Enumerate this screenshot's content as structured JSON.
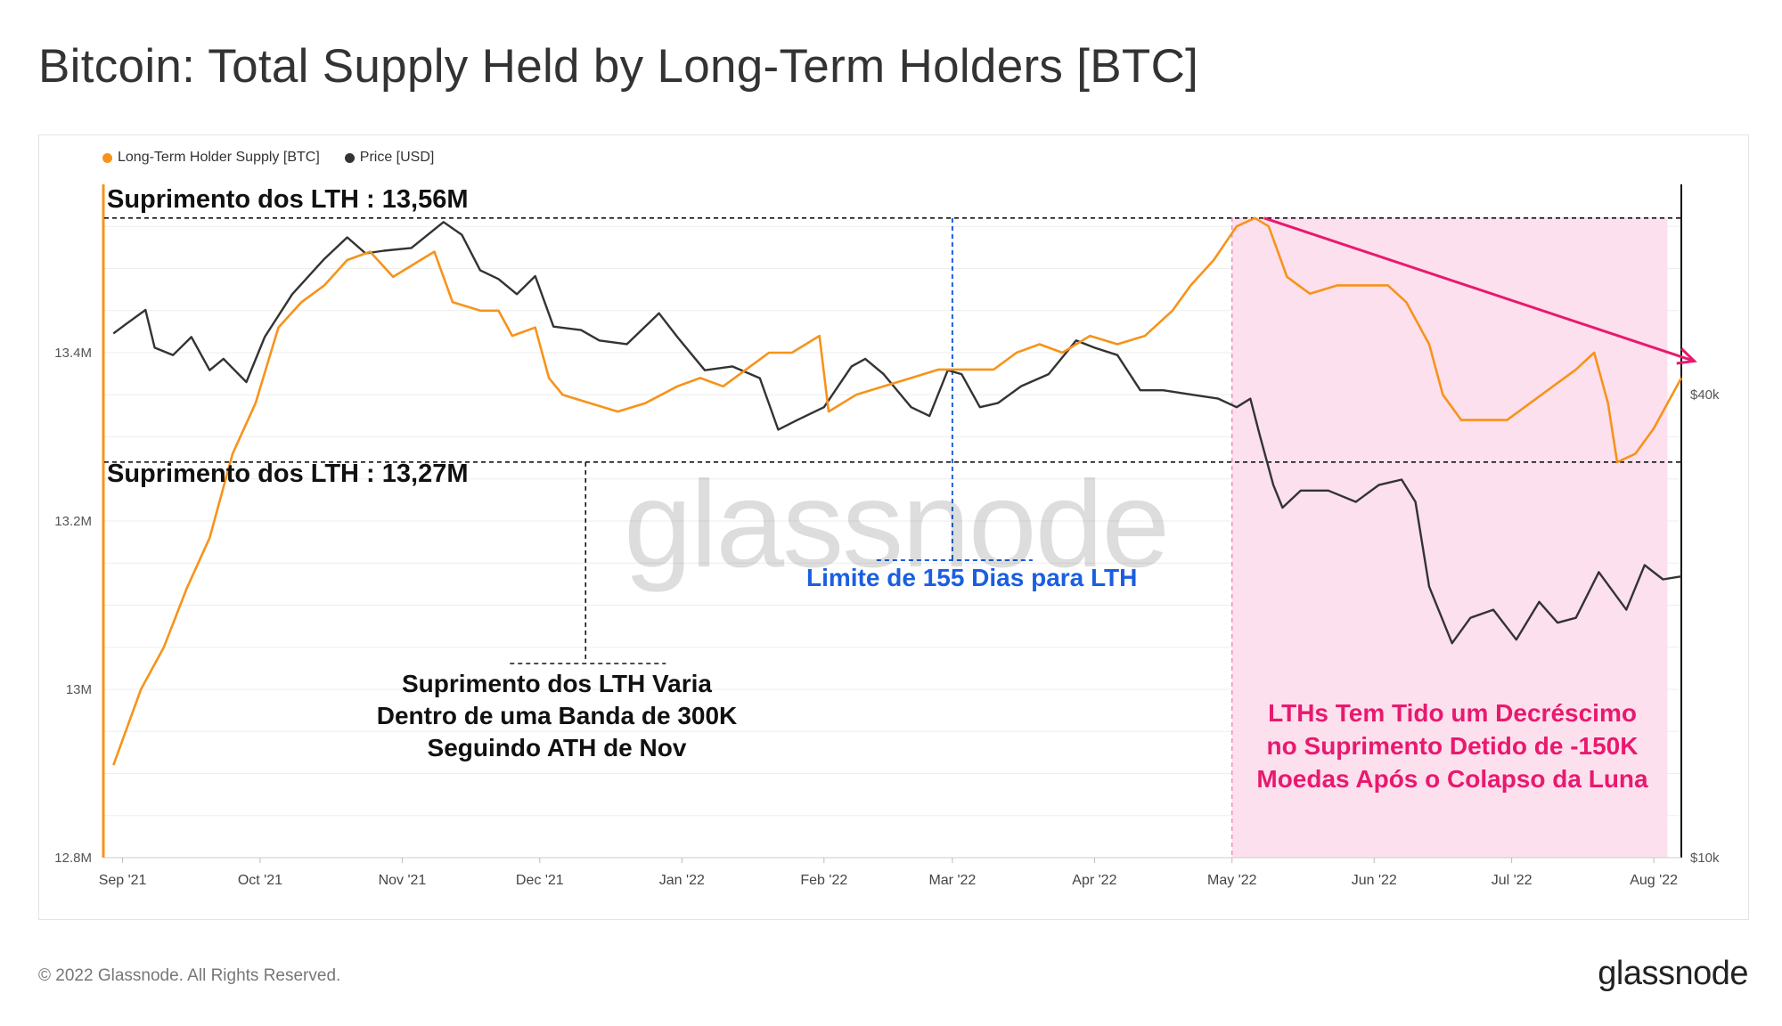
{
  "title": "Bitcoin: Total Supply Held by Long-Term Holders [BTC]",
  "legend": [
    {
      "label": "Long-Term Holder Supply [BTC]",
      "color": "#f7931a"
    },
    {
      "label": "Price [USD]",
      "color": "#333333"
    }
  ],
  "footer": {
    "copyright": "© 2022 Glassnode. All Rights Reserved.",
    "logo": "glassnode"
  },
  "watermark": "glassnode",
  "annotations": {
    "lth_high": "Suprimento dos LTH : 13,56M",
    "lth_low": "Suprimento dos LTH : 13,27M",
    "limit": "Limite de 155 Dias para LTH",
    "band": [
      "Suprimento dos LTH Varia",
      "Dentro de uma Banda de 300K",
      "Seguindo ATH de Nov"
    ],
    "decline": [
      "LTHs Tem Tido um Decréscimo",
      "no Suprimento Detido de -150K",
      "Moedas Após o Colapso da Luna"
    ]
  },
  "colors": {
    "lth": "#f7931a",
    "price": "#333333",
    "highlight": "#fde0ee",
    "arrow": "#e8196e",
    "limit": "#1a5fe0"
  },
  "chart_data": {
    "type": "line",
    "x_range": [
      "2021-08-28",
      "2022-08-07"
    ],
    "x_ticks": [
      "Sep '21",
      "Oct '21",
      "Nov '21",
      "Dec '21",
      "Jan '22",
      "Feb '22",
      "Mar '22",
      "Apr '22",
      "May '22",
      "Jun '22",
      "Jul '22",
      "Aug '22"
    ],
    "y_left": {
      "label": "Long-Term Holder Supply [BTC]",
      "ticks": [
        "12.8M",
        "13M",
        "13.2M",
        "13.4M"
      ],
      "range": [
        12.8,
        13.6
      ]
    },
    "y_right": {
      "label": "Price [USD]",
      "scale": "log",
      "ticks": [
        "$10k",
        "$40k"
      ],
      "range": [
        10000,
        75000
      ]
    },
    "reference_levels": {
      "lth_high": 13.56,
      "lth_low": 13.27,
      "limit_date": "2022-03-01"
    },
    "highlight_range": [
      "2022-05-01",
      "2022-08-04"
    ],
    "trend_arrow": {
      "from": [
        "2022-05-08",
        13.56
      ],
      "to": [
        "2022-08-04",
        13.39
      ]
    },
    "series": [
      {
        "name": "Long-Term Holder Supply [BTC]",
        "axis": "left",
        "unit": "M BTC",
        "points": [
          [
            "2021-08-30",
            12.91
          ],
          [
            "2021-09-05",
            13.0
          ],
          [
            "2021-09-10",
            13.05
          ],
          [
            "2021-09-15",
            13.12
          ],
          [
            "2021-09-20",
            13.18
          ],
          [
            "2021-09-25",
            13.28
          ],
          [
            "2021-09-30",
            13.34
          ],
          [
            "2021-10-05",
            13.43
          ],
          [
            "2021-10-10",
            13.46
          ],
          [
            "2021-10-15",
            13.48
          ],
          [
            "2021-10-20",
            13.51
          ],
          [
            "2021-10-25",
            13.52
          ],
          [
            "2021-10-30",
            13.49
          ],
          [
            "2021-11-05",
            13.51
          ],
          [
            "2021-11-08",
            13.52
          ],
          [
            "2021-11-12",
            13.46
          ],
          [
            "2021-11-18",
            13.45
          ],
          [
            "2021-11-22",
            13.45
          ],
          [
            "2021-11-25",
            13.42
          ],
          [
            "2021-11-30",
            13.43
          ],
          [
            "2021-12-03",
            13.37
          ],
          [
            "2021-12-06",
            13.35
          ],
          [
            "2021-12-12",
            13.34
          ],
          [
            "2021-12-18",
            13.33
          ],
          [
            "2021-12-24",
            13.34
          ],
          [
            "2021-12-31",
            13.36
          ],
          [
            "2022-01-05",
            13.37
          ],
          [
            "2022-01-10",
            13.36
          ],
          [
            "2022-01-15",
            13.38
          ],
          [
            "2022-01-20",
            13.4
          ],
          [
            "2022-01-25",
            13.4
          ],
          [
            "2022-01-31",
            13.42
          ],
          [
            "2022-02-02",
            13.33
          ],
          [
            "2022-02-08",
            13.35
          ],
          [
            "2022-02-14",
            13.36
          ],
          [
            "2022-02-20",
            13.37
          ],
          [
            "2022-02-26",
            13.38
          ],
          [
            "2022-03-05",
            13.38
          ],
          [
            "2022-03-10",
            13.38
          ],
          [
            "2022-03-15",
            13.4
          ],
          [
            "2022-03-20",
            13.41
          ],
          [
            "2022-03-25",
            13.4
          ],
          [
            "2022-03-31",
            13.42
          ],
          [
            "2022-04-06",
            13.41
          ],
          [
            "2022-04-12",
            13.42
          ],
          [
            "2022-04-18",
            13.45
          ],
          [
            "2022-04-22",
            13.48
          ],
          [
            "2022-04-27",
            13.51
          ],
          [
            "2022-05-02",
            13.55
          ],
          [
            "2022-05-06",
            13.56
          ],
          [
            "2022-05-09",
            13.55
          ],
          [
            "2022-05-13",
            13.49
          ],
          [
            "2022-05-18",
            13.47
          ],
          [
            "2022-05-24",
            13.48
          ],
          [
            "2022-05-30",
            13.48
          ],
          [
            "2022-06-04",
            13.48
          ],
          [
            "2022-06-08",
            13.46
          ],
          [
            "2022-06-13",
            13.41
          ],
          [
            "2022-06-16",
            13.35
          ],
          [
            "2022-06-20",
            13.32
          ],
          [
            "2022-06-25",
            13.32
          ],
          [
            "2022-06-30",
            13.32
          ],
          [
            "2022-07-05",
            13.34
          ],
          [
            "2022-07-10",
            13.36
          ],
          [
            "2022-07-15",
            13.38
          ],
          [
            "2022-07-19",
            13.4
          ],
          [
            "2022-07-22",
            13.34
          ],
          [
            "2022-07-24",
            13.27
          ],
          [
            "2022-07-28",
            13.28
          ],
          [
            "2022-08-01",
            13.31
          ],
          [
            "2022-08-06",
            13.36
          ],
          [
            "2022-08-07",
            13.37
          ]
        ]
      },
      {
        "name": "Price [USD]",
        "axis": "right",
        "unit": "USD",
        "points": [
          [
            "2021-08-30",
            48000
          ],
          [
            "2021-09-02",
            49500
          ],
          [
            "2021-09-06",
            51500
          ],
          [
            "2021-09-08",
            46000
          ],
          [
            "2021-09-12",
            45000
          ],
          [
            "2021-09-16",
            47500
          ],
          [
            "2021-09-20",
            43000
          ],
          [
            "2021-09-23",
            44500
          ],
          [
            "2021-09-28",
            41500
          ],
          [
            "2021-10-02",
            47500
          ],
          [
            "2021-10-08",
            54000
          ],
          [
            "2021-10-15",
            60000
          ],
          [
            "2021-10-20",
            64000
          ],
          [
            "2021-10-24",
            61000
          ],
          [
            "2021-10-28",
            61500
          ],
          [
            "2021-11-03",
            62000
          ],
          [
            "2021-11-10",
            67000
          ],
          [
            "2021-11-14",
            64500
          ],
          [
            "2021-11-18",
            58000
          ],
          [
            "2021-11-22",
            56500
          ],
          [
            "2021-11-26",
            54000
          ],
          [
            "2021-11-30",
            57000
          ],
          [
            "2021-12-04",
            49000
          ],
          [
            "2021-12-10",
            48500
          ],
          [
            "2021-12-14",
            47000
          ],
          [
            "2021-12-20",
            46500
          ],
          [
            "2021-12-27",
            51000
          ],
          [
            "2021-12-31",
            47500
          ],
          [
            "2022-01-06",
            43000
          ],
          [
            "2022-01-12",
            43500
          ],
          [
            "2022-01-18",
            42000
          ],
          [
            "2022-01-22",
            36000
          ],
          [
            "2022-01-26",
            37000
          ],
          [
            "2022-02-01",
            38500
          ],
          [
            "2022-02-07",
            43500
          ],
          [
            "2022-02-10",
            44500
          ],
          [
            "2022-02-14",
            42500
          ],
          [
            "2022-02-20",
            38500
          ],
          [
            "2022-02-24",
            37500
          ],
          [
            "2022-02-28",
            43000
          ],
          [
            "2022-03-03",
            42500
          ],
          [
            "2022-03-07",
            38500
          ],
          [
            "2022-03-11",
            39000
          ],
          [
            "2022-03-16",
            41000
          ],
          [
            "2022-03-22",
            42500
          ],
          [
            "2022-03-28",
            47000
          ],
          [
            "2022-04-01",
            46000
          ],
          [
            "2022-04-06",
            45000
          ],
          [
            "2022-04-11",
            40500
          ],
          [
            "2022-04-16",
            40500
          ],
          [
            "2022-04-22",
            40000
          ],
          [
            "2022-04-28",
            39500
          ],
          [
            "2022-05-02",
            38500
          ],
          [
            "2022-05-05",
            39500
          ],
          [
            "2022-05-07",
            35500
          ],
          [
            "2022-05-10",
            30500
          ],
          [
            "2022-05-12",
            28500
          ],
          [
            "2022-05-16",
            30000
          ],
          [
            "2022-05-22",
            30000
          ],
          [
            "2022-05-28",
            29000
          ],
          [
            "2022-06-02",
            30500
          ],
          [
            "2022-06-07",
            31000
          ],
          [
            "2022-06-10",
            29000
          ],
          [
            "2022-06-13",
            22500
          ],
          [
            "2022-06-18",
            19000
          ],
          [
            "2022-06-22",
            20500
          ],
          [
            "2022-06-27",
            21000
          ],
          [
            "2022-07-02",
            19200
          ],
          [
            "2022-07-07",
            21500
          ],
          [
            "2022-07-11",
            20200
          ],
          [
            "2022-07-15",
            20500
          ],
          [
            "2022-07-20",
            23500
          ],
          [
            "2022-07-26",
            21000
          ],
          [
            "2022-07-30",
            24000
          ],
          [
            "2022-08-03",
            23000
          ],
          [
            "2022-08-07",
            23200
          ]
        ]
      }
    ]
  }
}
